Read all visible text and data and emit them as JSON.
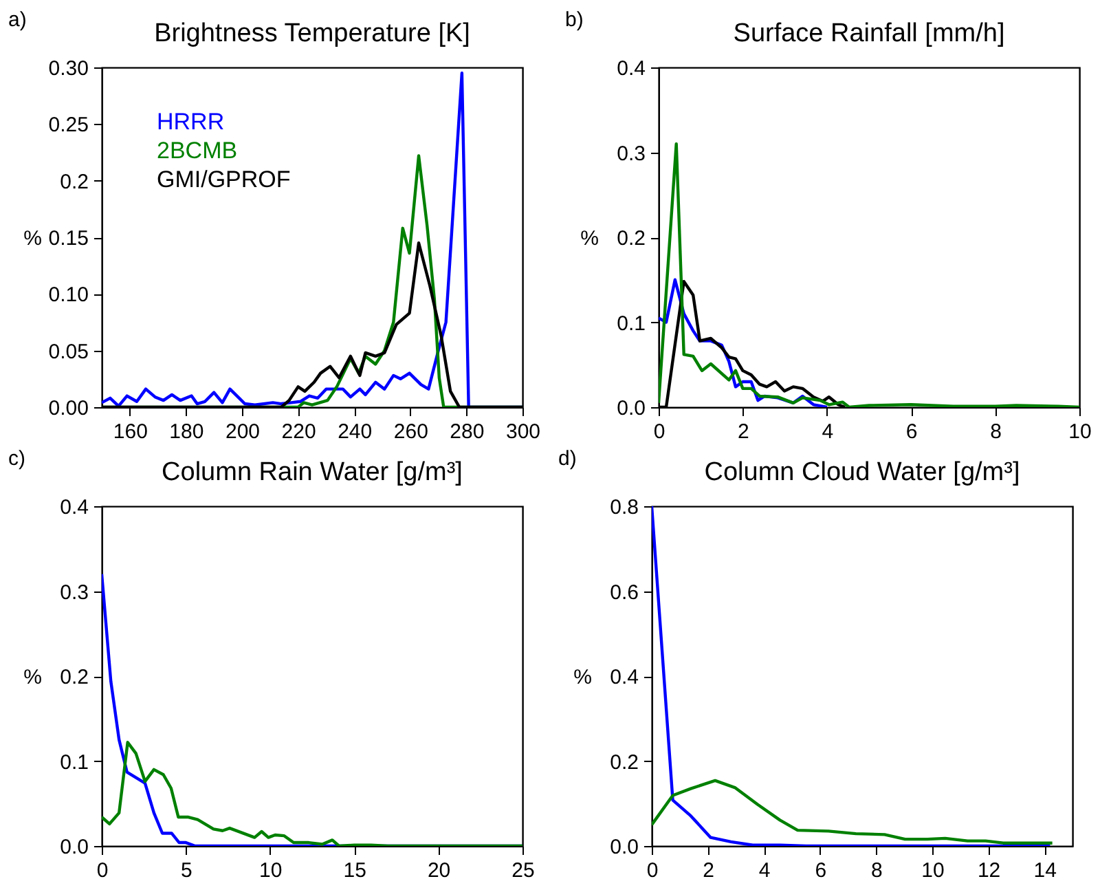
{
  "chart_data": [
    {
      "type": "line",
      "title": "Brightness Temperature [K]",
      "ylabel": "%",
      "annotations": [
        "a)"
      ],
      "legend": "top left",
      "xlim": [
        150,
        300
      ],
      "xticks": [
        160,
        180,
        200,
        220,
        240,
        260,
        280,
        300
      ],
      "ylim": [
        0,
        0.3
      ],
      "yticks": [
        {
          "value": 0,
          "label": "0.00"
        },
        0.05,
        {
          "value": 0.1,
          "label": "0.10"
        },
        0.15,
        0.2,
        0.25,
        {
          "value": 0.3,
          "label": "0.30"
        }
      ],
      "series": [
        {
          "name": "HRRR",
          "color": "#0000ff",
          "x": [
            150,
            153,
            156,
            159,
            162.5,
            165.7,
            169,
            172,
            175,
            178,
            182,
            184,
            186.8,
            190,
            193,
            195.7,
            199,
            201,
            204.6,
            211,
            214,
            217.6,
            220.8,
            224,
            227,
            230,
            236,
            238.7,
            242,
            244,
            247.6,
            250.8,
            254,
            256.5,
            259.7,
            263.8,
            266.5,
            270,
            272.7,
            278.4,
            280.8,
            300
          ],
          "values": [
            0.004,
            0.008,
            0.001,
            0.01,
            0.005,
            0.016,
            0.009,
            0.006,
            0.011,
            0.006,
            0.01,
            0.003,
            0.005,
            0.013,
            0.004,
            0.016,
            0.008,
            0.003,
            0.002,
            0.004,
            0.003,
            0.004,
            0.005,
            0.01,
            0.008,
            0.016,
            0.016,
            0.009,
            0.016,
            0.011,
            0.022,
            0.016,
            0.028,
            0.025,
            0.03,
            0.02,
            0.016,
            0.05,
            0.075,
            0.295,
            0,
            0
          ]
        },
        {
          "name": "2BCMB",
          "color": "#008000",
          "x": [
            150,
            220,
            222,
            225,
            230.5,
            233.8,
            238.7,
            241.6,
            244,
            247.6,
            250.8,
            254,
            257.3,
            259.7,
            263,
            266,
            268.6,
            270.3,
            271.9,
            300
          ],
          "values": [
            0,
            0,
            0.004,
            0.002,
            0.006,
            0.018,
            0.043,
            0.03,
            0.045,
            0.038,
            0.05,
            0.075,
            0.158,
            0.136,
            0.222,
            0.16,
            0.095,
            0.026,
            0,
            0
          ]
        },
        {
          "name": "GMI/GPROF",
          "color": "#000000",
          "x": [
            150,
            214,
            216.8,
            220,
            222.4,
            225.7,
            228,
            231.4,
            234.6,
            238.7,
            242,
            244,
            247.6,
            250.8,
            255,
            259.7,
            263,
            267,
            271,
            274.3,
            277.5,
            300
          ],
          "values": [
            0,
            0,
            0.006,
            0.018,
            0.014,
            0.022,
            0.03,
            0.036,
            0.026,
            0.045,
            0.028,
            0.048,
            0.045,
            0.048,
            0.073,
            0.083,
            0.145,
            0.107,
            0.063,
            0.014,
            0,
            0
          ]
        }
      ]
    },
    {
      "type": "line",
      "title": "Surface Rainfall [mm/h]",
      "ylabel": "%",
      "annotations": [
        "b)"
      ],
      "xlim": [
        0,
        10
      ],
      "xticks": [
        0,
        2,
        4,
        6,
        8,
        10
      ],
      "ylim": [
        0,
        0.4
      ],
      "yticks": [
        {
          "value": 0,
          "label": "0.0"
        },
        0.1,
        0.2,
        0.3,
        0.4
      ],
      "series": [
        {
          "color": "#0000ff",
          "x": [
            0,
            0.18,
            0.39,
            0.6,
            0.82,
            0.98,
            1.24,
            1.5,
            1.67,
            1.83,
            2.0,
            2.2,
            2.36,
            2.52,
            2.83,
            3.2,
            3.42,
            3.68,
            4.0
          ],
          "values": [
            0.105,
            0.1,
            0.15,
            0.11,
            0.09,
            0.078,
            0.078,
            0.073,
            0.054,
            0.024,
            0.03,
            0.03,
            0.008,
            0.013,
            0.011,
            0.005,
            0.013,
            0.003,
            0
          ]
        },
        {
          "color": "#000000",
          "x": [
            0,
            0.18,
            0.6,
            0.82,
            0.98,
            1.24,
            1.5,
            1.67,
            1.83,
            2.0,
            2.2,
            2.4,
            2.57,
            2.78,
            2.99,
            3.2,
            3.42,
            3.68,
            3.9,
            4.05,
            4.27,
            4.43
          ],
          "values": [
            0,
            0,
            0.148,
            0.132,
            0.078,
            0.081,
            0.07,
            0.059,
            0.057,
            0.043,
            0.038,
            0.027,
            0.024,
            0.03,
            0.019,
            0.024,
            0.022,
            0.012,
            0.007,
            0.012,
            0.003,
            0
          ]
        },
        {
          "color": "#008000",
          "x": [
            0,
            0.42,
            0.6,
            0.82,
            1.03,
            1.24,
            1.67,
            1.83,
            2.0,
            2.2,
            2.4,
            2.83,
            3.2,
            3.42,
            3.84,
            4.05,
            4.37,
            4.53,
            5,
            6,
            7,
            8,
            8.5,
            9.5,
            10
          ],
          "values": [
            0.005,
            0.31,
            0.062,
            0.06,
            0.043,
            0.051,
            0.032,
            0.043,
            0.022,
            0.022,
            0.013,
            0.012,
            0.005,
            0.011,
            0.008,
            0.003,
            0.006,
            0,
            0.002,
            0.003,
            0.001,
            0.001,
            0.002,
            0.001,
            0
          ]
        }
      ]
    },
    {
      "type": "line",
      "title": "Column Rain Water [g/m³]",
      "ylabel": "%",
      "annotations": [
        "c)"
      ],
      "xlim": [
        0,
        25
      ],
      "xticks": [
        0,
        5,
        10,
        15,
        20,
        25
      ],
      "ylim": [
        0,
        0.4
      ],
      "yticks": [
        {
          "value": 0,
          "label": "0.0"
        },
        0.1,
        0.2,
        0.3,
        0.4
      ],
      "series": [
        {
          "color": "#0000ff",
          "x": [
            0,
            0.54,
            1.03,
            1.5,
            2.57,
            3.1,
            3.6,
            4.15,
            4.6,
            5.0,
            5.55,
            25
          ],
          "values": [
            0.32,
            0.194,
            0.125,
            0.087,
            0.074,
            0.039,
            0.015,
            0.015,
            0.004,
            0.004,
            0,
            0
          ]
        },
        {
          "color": "#008000",
          "x": [
            0,
            0.46,
            1.03,
            1.54,
            2.03,
            2.57,
            3.1,
            3.66,
            4.12,
            4.55,
            5.15,
            5.7,
            6.64,
            7.18,
            7.6,
            9.08,
            9.5,
            9.9,
            10.3,
            10.84,
            11.4,
            12.3,
            13.1,
            13.7,
            14.1,
            15,
            16,
            17,
            25
          ],
          "values": [
            0.034,
            0.026,
            0.039,
            0.122,
            0.109,
            0.076,
            0.09,
            0.084,
            0.068,
            0.034,
            0.034,
            0.031,
            0.02,
            0.018,
            0.021,
            0.01,
            0.017,
            0.01,
            0.013,
            0.012,
            0.004,
            0.004,
            0.002,
            0.007,
            0,
            0.001,
            0.001,
            0,
            0
          ]
        }
      ]
    },
    {
      "type": "line",
      "title": "Column Cloud Water [g/m³]",
      "ylabel": "%",
      "annotations": [
        "d)"
      ],
      "xlim": [
        0,
        15
      ],
      "xticks": [
        0,
        2,
        4,
        6,
        8,
        10,
        12,
        14
      ],
      "ylim": [
        0,
        0.8
      ],
      "yticks": [
        {
          "value": 0,
          "label": "0.0"
        },
        0.2,
        0.4,
        0.6,
        0.8
      ],
      "series": [
        {
          "color": "#0000ff",
          "x": [
            0,
            0.75,
            1.39,
            2.1,
            2.82,
            3.6,
            4.57,
            5.5,
            14.2
          ],
          "values": [
            0.8,
            0.108,
            0.071,
            0.02,
            0.01,
            0.002,
            0.002,
            0,
            0
          ]
        },
        {
          "color": "#008000",
          "x": [
            0,
            0.75,
            1.39,
            2.26,
            2.98,
            3.77,
            4.57,
            5.2,
            6.3,
            7.28,
            8.3,
            9.03,
            9.82,
            10.46,
            11.26,
            11.9,
            12.53,
            14.28
          ],
          "values": [
            0.05,
            0.119,
            0.135,
            0.154,
            0.137,
            0.098,
            0.061,
            0.037,
            0.035,
            0.029,
            0.027,
            0.016,
            0.016,
            0.018,
            0.012,
            0.012,
            0.007,
            0.007
          ]
        }
      ]
    }
  ]
}
